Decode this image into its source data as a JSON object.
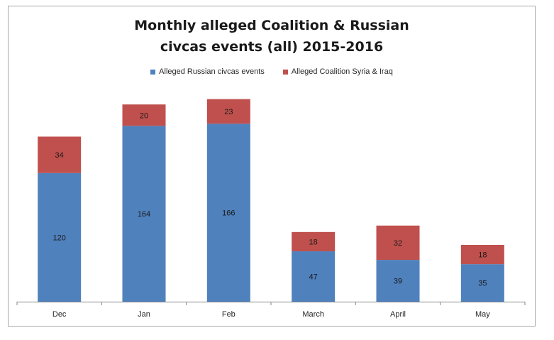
{
  "chart_data": {
    "type": "bar",
    "stacked": true,
    "title_lines": [
      "Monthly alleged Coalition & Russian",
      "civcas events (all) 2015-2016"
    ],
    "xlabel": "",
    "ylabel": "",
    "categories": [
      "Dec",
      "Jan",
      "Feb",
      "March",
      "April",
      "May"
    ],
    "series": [
      {
        "name": "Alleged Russian civcas events",
        "color": "#4f81bd",
        "values": [
          120,
          164,
          166,
          47,
          39,
          35
        ]
      },
      {
        "name": "Alleged Coalition Syria & Iraq",
        "color": "#c0504d",
        "values": [
          34,
          20,
          23,
          18,
          32,
          18
        ]
      }
    ],
    "data_labels": true,
    "grid": false,
    "legend_position": "top",
    "y_axis_visible": false
  }
}
